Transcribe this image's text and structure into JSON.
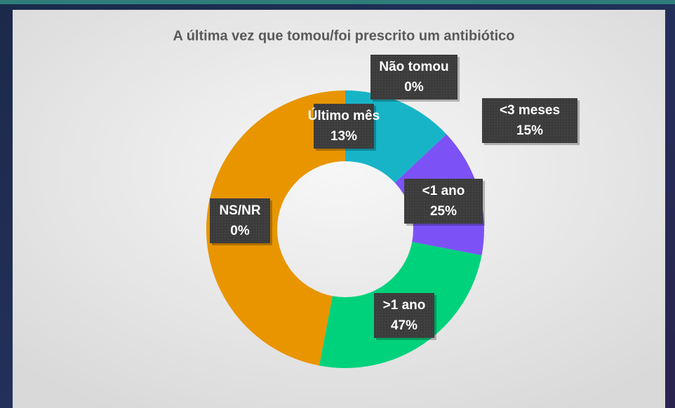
{
  "chart_data": {
    "type": "donut",
    "title": "A última vez que tomou/foi prescrito um antibiótico",
    "categories": [
      "Não tomou",
      "Último mês",
      "<3 meses",
      "<1 ano",
      ">1 ano",
      "NS/NR"
    ],
    "values": [
      0,
      13,
      15,
      25,
      47,
      0
    ],
    "value_labels": [
      "0%",
      "13%",
      "15%",
      "25%",
      "47%",
      "0%"
    ],
    "colors": [
      null,
      "#17b4c8",
      "#7c52f6",
      "#00d27c",
      "#e89500",
      null
    ]
  }
}
